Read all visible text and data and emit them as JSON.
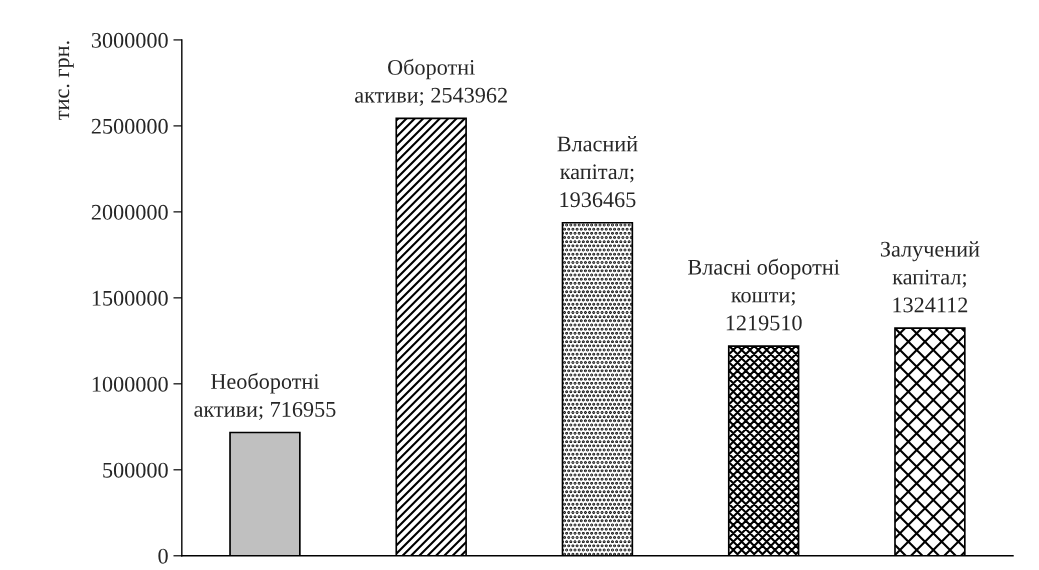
{
  "chart_data": {
    "type": "bar",
    "ylabel": "тис. грн.",
    "categories": [
      null,
      null,
      null,
      null,
      null
    ],
    "values": [
      716955,
      2543962,
      1936465,
      1219510,
      1324112
    ],
    "colors": [
      "#c0c0c0",
      "#000000",
      "#000000",
      "#000000",
      "#000000"
    ],
    "value_labels": [
      "Необоротні\nактиви; 716955",
      "Оборотні\nактиви; 2543962",
      "Власний\nкапітал;\n1936465",
      "Власні оборотні\nкошти;\n1219510",
      "Залучений\nкапітал;\n1324112"
    ],
    "ylim": [
      0,
      3000000
    ],
    "yticks": [
      0,
      500000,
      1000000,
      1500000,
      2000000,
      2500000,
      3000000
    ],
    "grid": false,
    "legend": false
  }
}
